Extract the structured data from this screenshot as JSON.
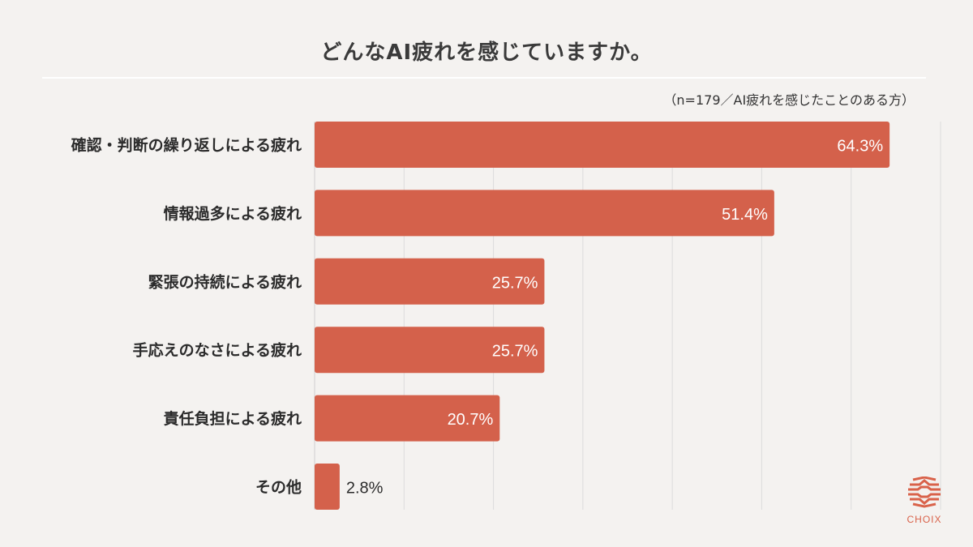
{
  "title": "どんなAI疲れを感じていますか。",
  "note": "（n=179／AI疲れを感じたことのある方）",
  "logo": {
    "text": "CHOIX",
    "color": "#d9624a"
  },
  "colors": {
    "bar": "#d4614b",
    "grid": "#dcdcdc"
  },
  "chart_data": {
    "type": "bar",
    "orientation": "horizontal",
    "title": "どんなAI疲れを感じていますか。",
    "categories": [
      "確認・判断の繰り返しによる疲れ",
      "情報過多による疲れ",
      "緊張の持続による疲れ",
      "手応えのなさによる疲れ",
      "責任負担による疲れ",
      "その他"
    ],
    "values": [
      64.3,
      51.4,
      25.7,
      25.7,
      20.7,
      2.8
    ],
    "labels": [
      "64.3%",
      "51.4%",
      "25.7%",
      "25.7%",
      "20.7%",
      "2.8%"
    ],
    "xlim": [
      0,
      70
    ],
    "gridlines": [
      10,
      20,
      30,
      40,
      50,
      60,
      70
    ],
    "unit": "%"
  }
}
